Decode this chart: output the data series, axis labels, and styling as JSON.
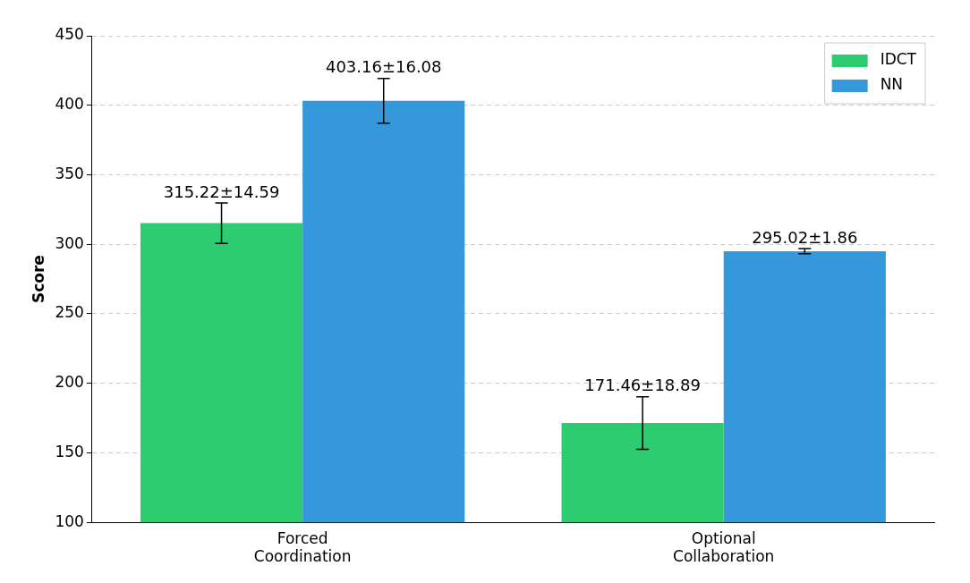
{
  "chart_data": {
    "type": "bar",
    "ylabel": "Score",
    "categories": [
      "Forced\nCoordination",
      "Optional\nCollaboration"
    ],
    "series": [
      {
        "name": "IDCT",
        "color": "#2ecc71",
        "values": [
          315.22,
          171.46
        ],
        "errors": [
          14.59,
          18.89
        ],
        "value_labels": [
          "315.22±14.59",
          "171.46±18.89"
        ]
      },
      {
        "name": "NN",
        "color": "#3498db",
        "values": [
          403.16,
          295.02
        ],
        "errors": [
          16.08,
          1.86
        ],
        "value_labels": [
          "403.16±16.08",
          "295.02±1.86"
        ]
      }
    ],
    "ylim": [
      100,
      450
    ],
    "yticks": [
      100,
      150,
      200,
      250,
      300,
      350,
      400,
      450
    ],
    "grid": "y",
    "legend": "top right"
  }
}
